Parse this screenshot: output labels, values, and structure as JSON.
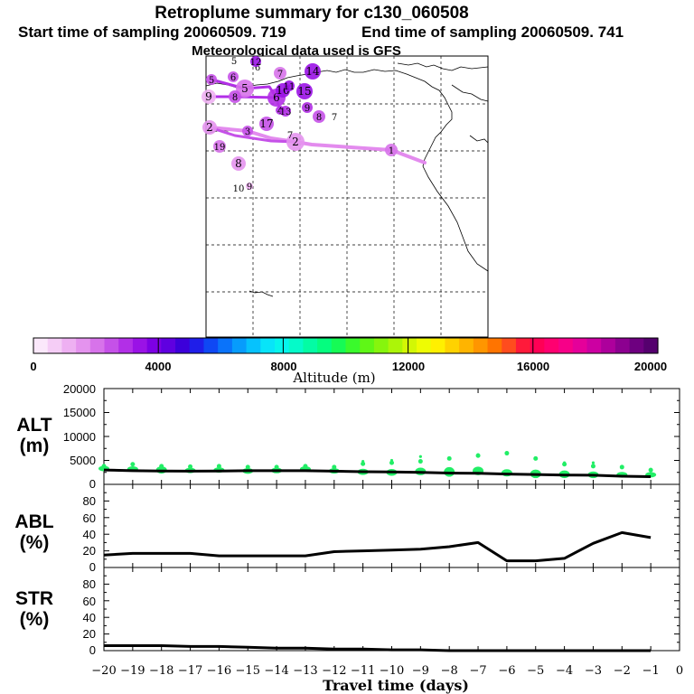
{
  "header": {
    "title": "Retroplume summary for c130_060508",
    "start_label": "Start time of sampling 20060509.   719",
    "end_label": "End time of sampling 20060509.   741",
    "met_label": "Meteorological data used is GFS"
  },
  "colorbar": {
    "ticks": [
      "0",
      "4000",
      "8000",
      "12000",
      "16000",
      "20000"
    ],
    "label": "Altitude (m)",
    "colors": [
      "#fbe8fb",
      "#f5cdf6",
      "#eeb0f2",
      "#e493ee",
      "#d773ea",
      "#c551e8",
      "#b22fe7",
      "#9a12e6",
      "#7d00e4",
      "#5f00e0",
      "#3c00da",
      "#1f1ee9",
      "#0f48f4",
      "#0a73fa",
      "#079cfc",
      "#06c2fd",
      "#08e4f9",
      "#06f5ec",
      "#05fac9",
      "#03fca4",
      "#05fd7f",
      "#16fb55",
      "#3afa2c",
      "#5ff716",
      "#86f50d",
      "#acf508",
      "#d2f705",
      "#eefc03",
      "#fff000",
      "#ffd200",
      "#ffb400",
      "#ff9600",
      "#ff7400",
      "#ff4c1e",
      "#ff1a3a",
      "#ff0055",
      "#ff0070",
      "#f70088",
      "#e5009a",
      "#cc00a2",
      "#ad009c",
      "#8c0090",
      "#6e0080",
      "#55006e"
    ]
  },
  "map": {
    "labels": [
      {
        "t": "1",
        "x": 433,
        "y": 166,
        "r": 7,
        "c": "#d773ea"
      },
      {
        "t": "2",
        "x": 327,
        "y": 157,
        "r": 10,
        "c": "#e493ee"
      },
      {
        "t": "2",
        "x": 232,
        "y": 141,
        "r": 8,
        "c": "#e493ee"
      },
      {
        "t": "3",
        "x": 274,
        "y": 145,
        "r": 6,
        "c": "#c551e8"
      },
      {
        "t": "4",
        "x": 310,
        "y": 122,
        "r": 5,
        "c": "#b22fe7"
      },
      {
        "t": "5",
        "x": 271,
        "y": 98,
        "r": 10,
        "c": "#d773ea"
      },
      {
        "t": "5",
        "x": 234,
        "y": 88,
        "r": 6,
        "c": "#c551e8"
      },
      {
        "t": "6",
        "x": 306,
        "y": 108,
        "r": 10,
        "c": "#b22fe7"
      },
      {
        "t": "6",
        "x": 258,
        "y": 85,
        "r": 6,
        "c": "#c551e8"
      },
      {
        "t": "6",
        "x": 285,
        "y": 74,
        "r": 0,
        "c": "#ffffff"
      },
      {
        "t": "7",
        "x": 310,
        "y": 81,
        "r": 7,
        "c": "#d773ea"
      },
      {
        "t": "7",
        "x": 370,
        "y": 129,
        "r": 0,
        "c": "#ffffff"
      },
      {
        "t": "7",
        "x": 321,
        "y": 149,
        "r": 0,
        "c": "#ffffff"
      },
      {
        "t": "8",
        "x": 353,
        "y": 129,
        "r": 7,
        "c": "#c551e8"
      },
      {
        "t": "8",
        "x": 264,
        "y": 181,
        "r": 8,
        "c": "#e493ee"
      },
      {
        "t": "8",
        "x": 260,
        "y": 107,
        "r": 7,
        "c": "#c551e8"
      },
      {
        "t": "9",
        "x": 340,
        "y": 119,
        "r": 6,
        "c": "#b22fe7"
      },
      {
        "t": "9",
        "x": 231,
        "y": 107,
        "r": 8,
        "c": "#eeb0f2"
      },
      {
        "t": "9",
        "x": 276,
        "y": 206,
        "r": 4,
        "c": "#eeb0f2"
      },
      {
        "t": "10",
        "x": 313,
        "y": 100,
        "r": 8,
        "c": "#9a12e6"
      },
      {
        "t": "10",
        "x": 264,
        "y": 208,
        "r": 0,
        "c": "#ffffff"
      },
      {
        "t": "11",
        "x": 320,
        "y": 95,
        "r": 6,
        "c": "#9a12e6"
      },
      {
        "t": "12",
        "x": 283,
        "y": 68,
        "r": 6,
        "c": "#9a12e6"
      },
      {
        "t": "13",
        "x": 316,
        "y": 123,
        "r": 6,
        "c": "#b22fe7"
      },
      {
        "t": "14",
        "x": 346,
        "y": 79,
        "r": 9,
        "c": "#9a12e6"
      },
      {
        "t": "15",
        "x": 337,
        "y": 101,
        "r": 9,
        "c": "#9a12e6"
      },
      {
        "t": "17",
        "x": 295,
        "y": 137,
        "r": 8,
        "c": "#c551e8"
      },
      {
        "t": "19",
        "x": 243,
        "y": 162,
        "r": 7,
        "c": "#d773ea"
      },
      {
        "t": "5",
        "x": 259,
        "y": 67,
        "r": 0,
        "c": "#ffffff"
      }
    ]
  },
  "panels": [
    {
      "label_top": "ALT",
      "label_bottom": "(m)",
      "ticks": [
        "20000",
        "15000",
        "10000",
        "5000",
        "0"
      ],
      "ymax": 20000
    },
    {
      "label_top": "ABL",
      "label_bottom": "(%)",
      "ticks": [
        "80",
        "60",
        "40",
        "20",
        "0"
      ],
      "ymax": 100
    },
    {
      "label_top": "STR",
      "label_bottom": "(%)",
      "ticks": [
        "80",
        "60",
        "40",
        "20",
        "0"
      ],
      "ymax": 100
    }
  ],
  "chart_data": {
    "type": "line",
    "xlabel": "Travel time (days)",
    "x_ticks": [
      "−20",
      "−19",
      "−18",
      "−17",
      "−16",
      "−15",
      "−14",
      "−13",
      "−12",
      "−11",
      "−10",
      "−9",
      "−8",
      "−7",
      "−6",
      "−5",
      "−4",
      "−3",
      "−2",
      "−1",
      "0"
    ],
    "xlim": [
      -20,
      0
    ],
    "series": [
      {
        "name": "ALT",
        "x": [
          -20,
          -19,
          -18,
          -17,
          -16,
          -15,
          -14,
          -13,
          -12,
          -11,
          -10,
          -9,
          -8,
          -7,
          -6,
          -5,
          -4,
          -3,
          -2,
          -1
        ],
        "values": [
          3000,
          2850,
          2800,
          2750,
          2800,
          2850,
          2850,
          2850,
          2750,
          2650,
          2600,
          2500,
          2350,
          2300,
          2150,
          2050,
          1950,
          1900,
          1700,
          1600
        ],
        "ylim": [
          0,
          20000
        ]
      },
      {
        "name": "ABL",
        "x": [
          -20,
          -19,
          -18,
          -17,
          -16,
          -15,
          -14,
          -13,
          -12,
          -11,
          -10,
          -9,
          -8,
          -7,
          -6,
          -5,
          -4,
          -3,
          -2,
          -1
        ],
        "values": [
          15,
          17,
          17,
          17,
          14,
          14,
          14,
          14,
          19,
          20,
          21,
          22,
          25,
          30,
          8,
          8,
          11,
          29,
          42,
          36
        ],
        "ylim": [
          0,
          100
        ]
      },
      {
        "name": "STR",
        "x": [
          -20,
          -19,
          -18,
          -17,
          -16,
          -15,
          -14,
          -13,
          -12,
          -11,
          -10,
          -9,
          -8,
          -7,
          -6,
          -5,
          -4,
          -3,
          -2,
          -1
        ],
        "values": [
          6,
          6,
          6,
          5,
          5,
          4,
          3,
          3,
          2,
          2,
          1,
          1,
          0,
          0,
          0,
          0,
          0,
          0,
          0,
          0
        ],
        "ylim": [
          0,
          100
        ]
      }
    ],
    "alt_points": {
      "main": [
        3300,
        3200,
        3000,
        2900,
        3000,
        2800,
        2900,
        3200,
        2800,
        2600,
        2500,
        2700,
        2600,
        2800,
        2400,
        2200,
        2100,
        2000,
        2000,
        2000
      ],
      "spread": [
        1000,
        1100,
        1500,
        1000,
        1000,
        1200,
        1200,
        1000,
        1000,
        1300,
        1400,
        1600,
        2000,
        1800,
        1500,
        1800,
        1600,
        1400,
        1200,
        900
      ],
      "top": [
        3800,
        4200,
        3800,
        3700,
        3800,
        3600,
        3600,
        3800,
        3600,
        4300,
        4500,
        4800,
        5400,
        6000,
        6500,
        5400,
        4200,
        3800,
        3600,
        3000
      ],
      "highest": [
        0,
        0,
        0,
        0,
        0,
        0,
        0,
        0,
        0,
        4800,
        5000,
        5800,
        5500,
        6200,
        6400,
        5300,
        4500,
        4500,
        3700,
        0
      ]
    }
  }
}
